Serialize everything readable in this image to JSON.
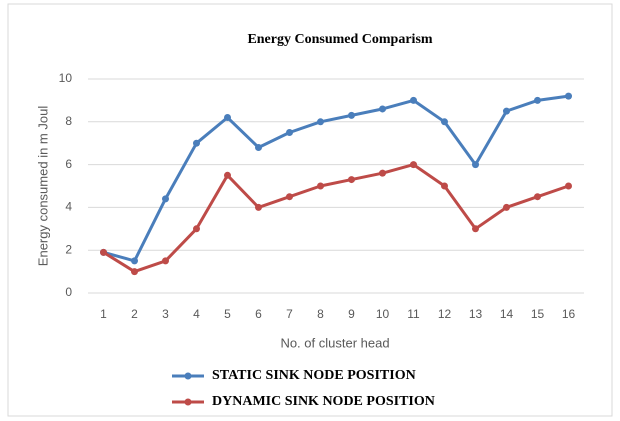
{
  "chart_data": {
    "type": "line",
    "title": "Energy Consumed Comparism",
    "x_label": "No. of cluster head",
    "y_label": "Energy consumed in m Joul",
    "categories": [
      1,
      2,
      3,
      4,
      5,
      6,
      7,
      8,
      9,
      10,
      11,
      12,
      13,
      14,
      15,
      16
    ],
    "series": [
      {
        "name": "STATIC SINK NODE POSITION",
        "color": "#4a7ebb",
        "values": [
          1.9,
          1.5,
          4.4,
          7.0,
          8.2,
          6.8,
          7.5,
          8.0,
          8.3,
          8.6,
          9.0,
          8.0,
          6.0,
          8.5,
          9.0,
          9.2
        ]
      },
      {
        "name": "DYNAMIC SINK NODE POSITION",
        "color": "#be4b48",
        "values": [
          1.9,
          1.0,
          1.5,
          3.0,
          5.5,
          4.0,
          4.5,
          5.0,
          5.3,
          5.6,
          6.0,
          5.0,
          3.0,
          4.0,
          4.5,
          5.0
        ]
      }
    ],
    "ylim": [
      0,
      10
    ],
    "yticks": [
      0,
      2,
      4,
      6,
      8,
      10
    ],
    "grid": true
  }
}
